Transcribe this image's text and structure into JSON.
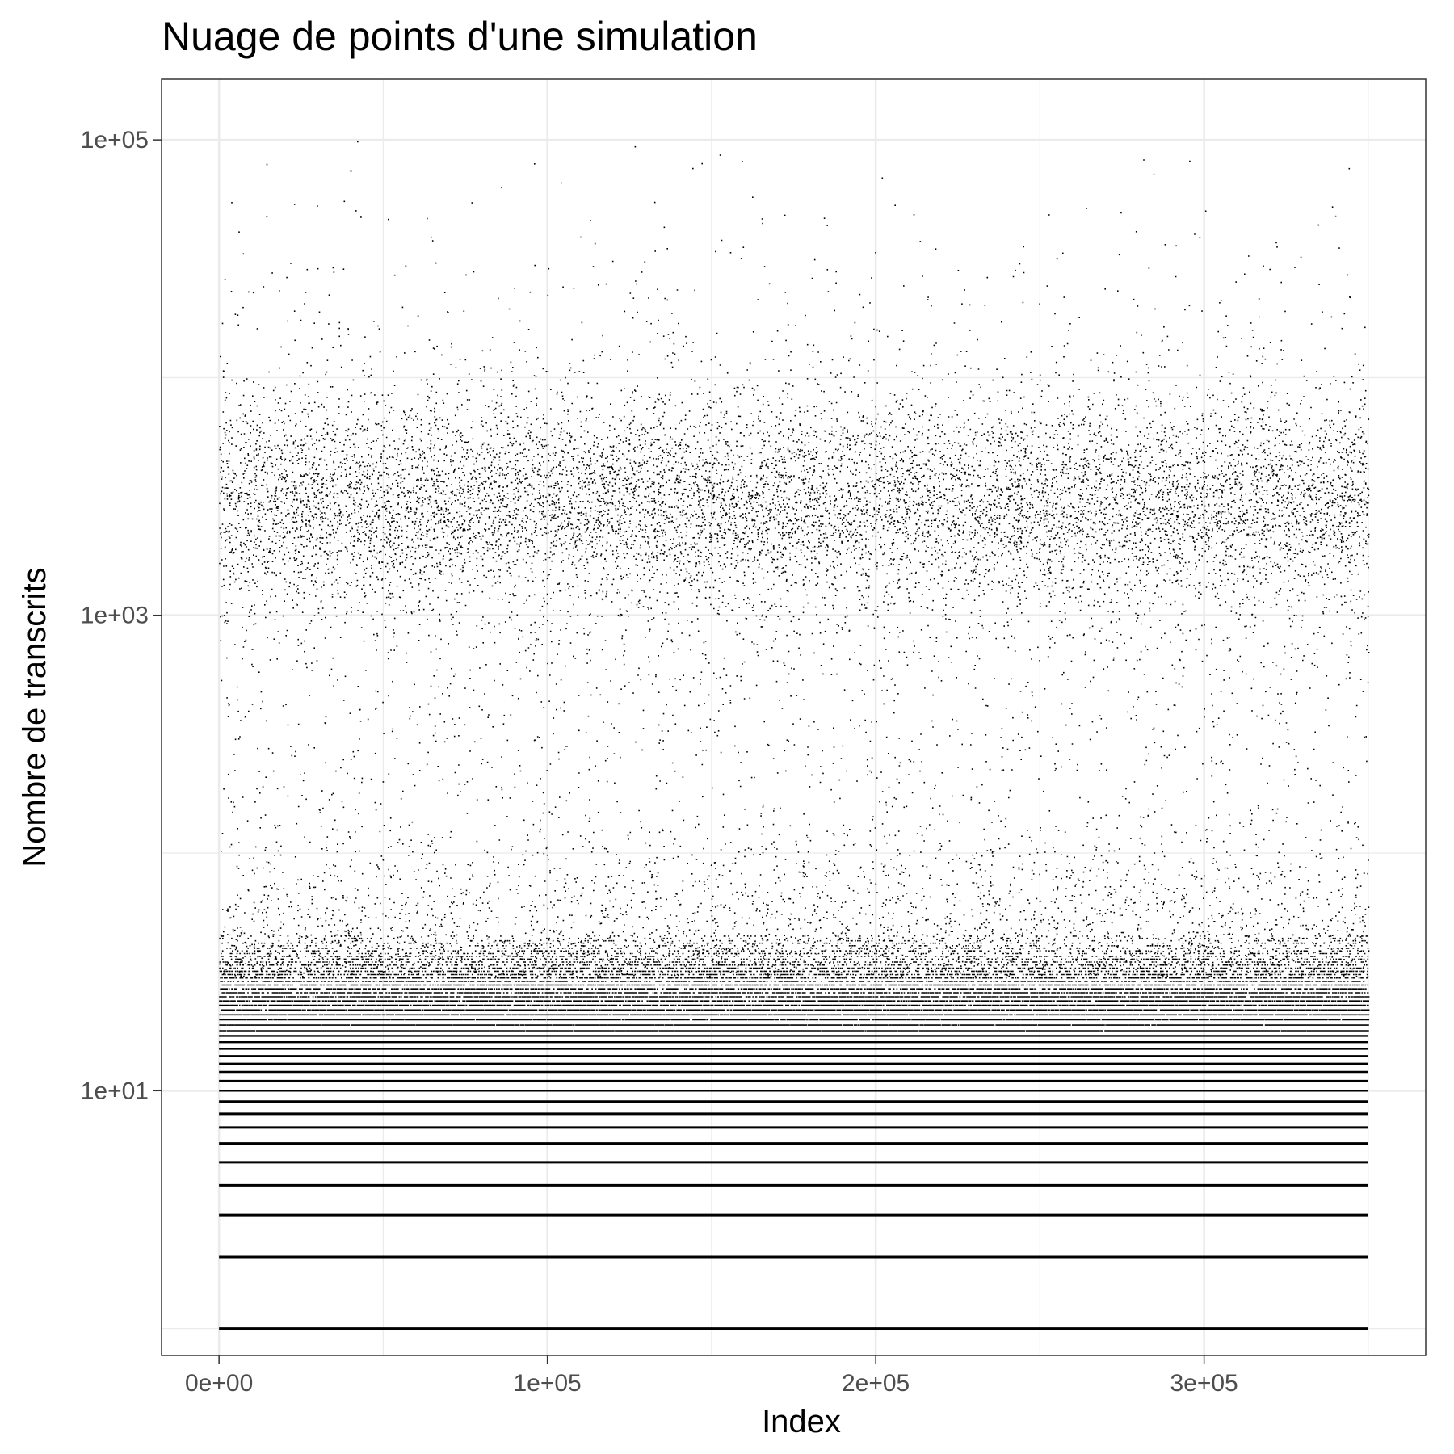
{
  "chart_data": {
    "type": "scatter",
    "title": "Nuage de points d'une simulation",
    "xlabel": "Index",
    "ylabel": "Nombre de transcrits",
    "x_scale": "linear",
    "y_scale": "log10",
    "xlim": [
      -17500,
      367500
    ],
    "ylim": [
      0.77,
      180000
    ],
    "x_ticks": [
      {
        "value": 0,
        "label": "0e+00"
      },
      {
        "value": 100000,
        "label": "1e+05"
      },
      {
        "value": 200000,
        "label": "2e+05"
      },
      {
        "value": 300000,
        "label": "3e+05"
      }
    ],
    "x_minor_ticks": [
      50000,
      150000,
      250000,
      350000
    ],
    "y_ticks": [
      {
        "value": 10,
        "label": "1e+01"
      },
      {
        "value": 1000,
        "label": "1e+03"
      },
      {
        "value": 100000,
        "label": "1e+05"
      }
    ],
    "y_minor_ticks": [
      1,
      100,
      10000
    ],
    "grid": true,
    "theme": "bw",
    "point_color": "#000000",
    "n_points": 350000,
    "x_range": [
      0,
      350000
    ],
    "integer_levels_drawn_as_lines": [
      1,
      2,
      3,
      4,
      5,
      6,
      7,
      8,
      9,
      10,
      11,
      12,
      13,
      14,
      15,
      16,
      17
    ],
    "distribution": {
      "low_mode_center": 10,
      "high_mode_center": 3000,
      "high_mode_spread_log10": 0.22,
      "max_value": 100000
    }
  }
}
